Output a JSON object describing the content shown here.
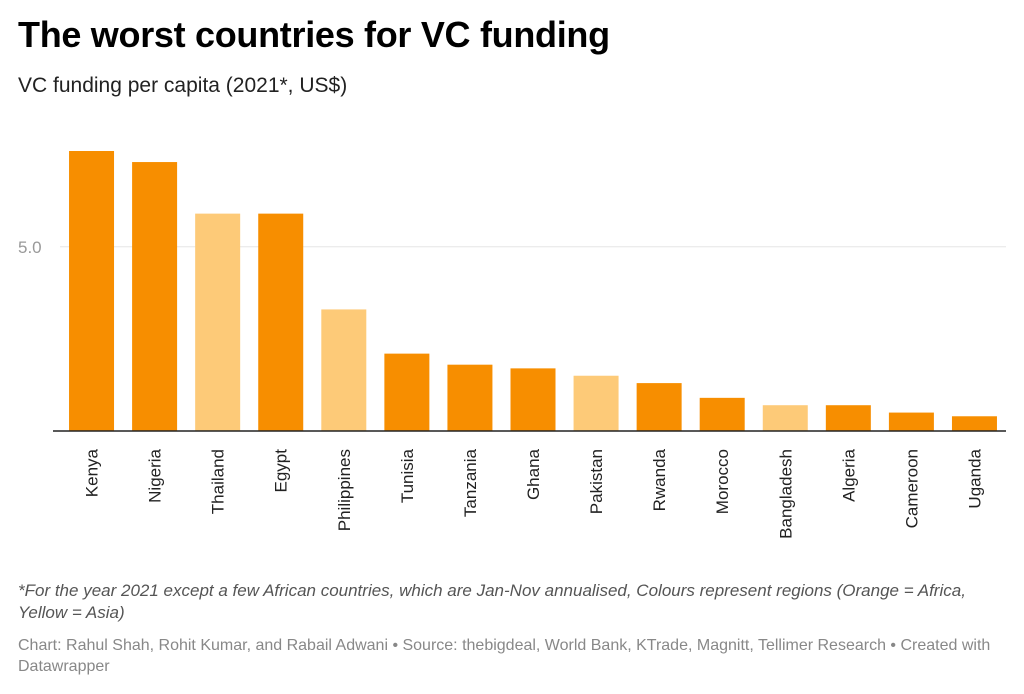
{
  "header": {
    "title": "The worst countries for VC funding",
    "subtitle": "VC funding per capita (2021*, US$)"
  },
  "footer": {
    "note": "*For the year 2021 except a few African countries, which are Jan-Nov annualised, Colours represent regions (Orange = Africa, Yellow = Asia)",
    "credit": "Chart: Rahul Shah, Rohit Kumar, and Rabail Adwani • Source: thebigdeal, World Bank, KTrade, Magnitt, Tellimer Research • Created with Datawrapper"
  },
  "colors": {
    "africa": "#f78e00",
    "asia": "#fdca78",
    "gridline": "#e5e5e5",
    "baseline": "#222222"
  },
  "chart_data": {
    "type": "bar",
    "title": "The worst countries for VC funding",
    "subtitle": "VC funding per capita (2021*, US$)",
    "xlabel": "",
    "ylabel": "",
    "ylim": [
      0,
      7.6
    ],
    "yticks": [
      {
        "value": 5,
        "label": "5.0"
      }
    ],
    "grid": true,
    "categories": [
      "Kenya",
      "Nigeria",
      "Thailand",
      "Egypt",
      "Philippines",
      "Tunisia",
      "Tanzania",
      "Ghana",
      "Pakistan",
      "Rwanda",
      "Morocco",
      "Bangladesh",
      "Algeria",
      "Cameroon",
      "Uganda"
    ],
    "values": [
      7.6,
      7.3,
      5.9,
      5.9,
      3.3,
      2.1,
      1.8,
      1.7,
      1.5,
      1.3,
      0.9,
      0.7,
      0.7,
      0.5,
      0.4
    ],
    "regions": [
      "Africa",
      "Africa",
      "Asia",
      "Africa",
      "Asia",
      "Africa",
      "Africa",
      "Africa",
      "Asia",
      "Africa",
      "Africa",
      "Asia",
      "Africa",
      "Africa",
      "Africa"
    ]
  }
}
